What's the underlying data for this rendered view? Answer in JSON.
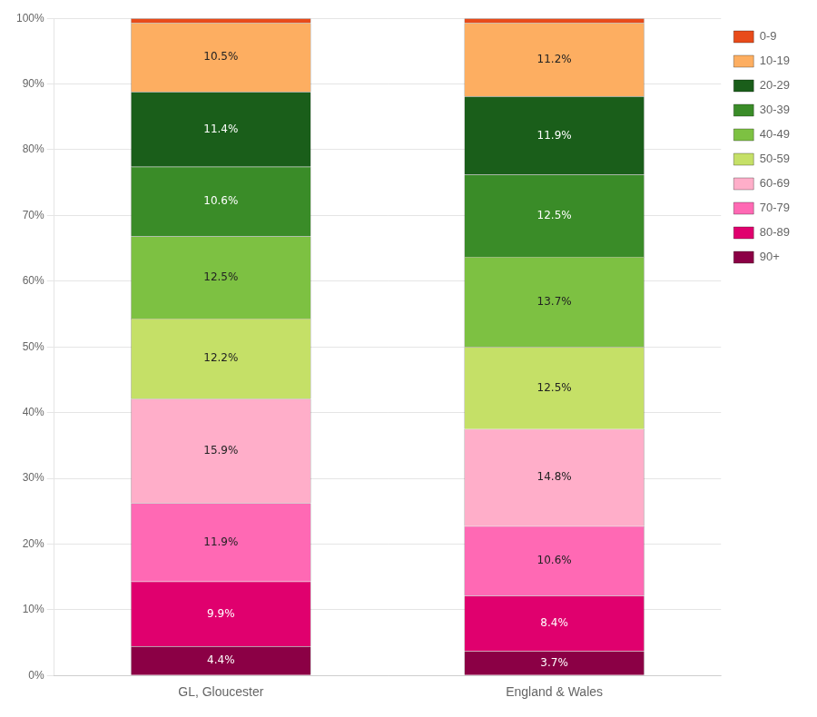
{
  "chart_data": {
    "type": "bar",
    "stacked": true,
    "categories": [
      "GL, Gloucester",
      "England & Wales"
    ],
    "series": [
      {
        "name": "90+",
        "color": "#8B0045",
        "values": [
          4.4,
          3.7
        ],
        "value_labels": [
          "4.4%",
          "3.7%"
        ]
      },
      {
        "name": "80-89",
        "color": "#E0006E",
        "values": [
          9.9,
          8.4
        ],
        "value_labels": [
          "9.9%",
          "8.4%"
        ]
      },
      {
        "name": "70-79",
        "color": "#FF69B4",
        "values": [
          11.9,
          10.6
        ],
        "value_labels": [
          "11.9%",
          "10.6%"
        ]
      },
      {
        "name": "60-69",
        "color": "#FFAEC9",
        "values": [
          15.9,
          14.8
        ],
        "value_labels": [
          "15.9%",
          "14.8%"
        ]
      },
      {
        "name": "50-59",
        "color": "#C5E067",
        "values": [
          12.2,
          12.5
        ],
        "value_labels": [
          "12.2%",
          "12.5%"
        ]
      },
      {
        "name": "40-49",
        "color": "#7DC142",
        "values": [
          12.5,
          13.7
        ],
        "value_labels": [
          "12.5%",
          "13.7%"
        ]
      },
      {
        "name": "30-39",
        "color": "#3A8C28",
        "values": [
          10.6,
          12.5
        ],
        "value_labels": [
          "10.6%",
          "12.5%"
        ]
      },
      {
        "name": "20-29",
        "color": "#1A5E1A",
        "values": [
          11.4,
          11.9
        ],
        "value_labels": [
          "11.4%",
          "11.9%"
        ]
      },
      {
        "name": "10-19",
        "color": "#FDAE61",
        "values": [
          10.5,
          11.2
        ],
        "value_labels": [
          "10.5%",
          "11.2%"
        ]
      },
      {
        "name": "0-9",
        "color": "#E84B1A",
        "values": [
          0.7,
          0.7
        ],
        "data_labels": false
      }
    ],
    "ylim": [
      0,
      100
    ],
    "yticks": [
      {
        "value": 0,
        "label": "0%"
      },
      {
        "value": 10,
        "label": "10%"
      },
      {
        "value": 20,
        "label": "20%"
      },
      {
        "value": 30,
        "label": "30%"
      },
      {
        "value": 40,
        "label": "40%"
      },
      {
        "value": 50,
        "label": "50%"
      },
      {
        "value": 60,
        "label": "60%"
      },
      {
        "value": 70,
        "label": "70%"
      },
      {
        "value": 80,
        "label": "80%"
      },
      {
        "value": 90,
        "label": "90%"
      },
      {
        "value": 100,
        "label": "100%"
      }
    ],
    "grid": true,
    "data_labels": true,
    "legend": "right"
  }
}
